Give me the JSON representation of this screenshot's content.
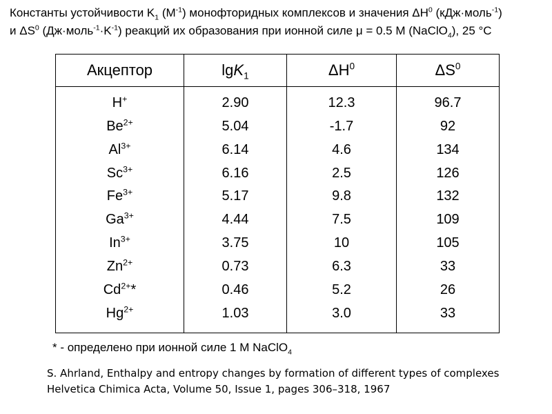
{
  "caption": {
    "p1": "Константы устойчивости K",
    "k_sub": "1",
    "p2": " (M",
    "p2_sup": "-1",
    "p3": ") монофторидных комплексов и значения ΔH",
    "p3_sup": "0",
    "p4": " (кДж·моль",
    "p4_sup": "-1",
    "p5": ")",
    "p6": "и ΔS",
    "p6_sup": "0",
    "p7": " (Дж·моль",
    "p7_sup": "-1",
    "p8": "·K",
    "p8_sup": "-1",
    "p9": ") реакций их образования при ионной силе μ = 0.5 M (NaClO",
    "p9_sub": "4",
    "p10": "), 25 °C"
  },
  "table": {
    "headers": {
      "acceptor": "Акцептор",
      "lgk_base": "lg",
      "lgk_k": "K",
      "lgk_sub": "1",
      "dh_base": "ΔH",
      "dh_sup": "0",
      "ds_base": "ΔS",
      "ds_sup": "0"
    },
    "rows": [
      {
        "ion": "H",
        "charge": "+",
        "mark": "",
        "lgk": "2.90",
        "dh": "12.3",
        "ds": "96.7"
      },
      {
        "ion": "Be",
        "charge": "2+",
        "mark": "",
        "lgk": "5.04",
        "dh": "-1.7",
        "ds": "92"
      },
      {
        "ion": "Al",
        "charge": "3+",
        "mark": "",
        "lgk": "6.14",
        "dh": "4.6",
        "ds": "134"
      },
      {
        "ion": "Sc",
        "charge": "3+",
        "mark": "",
        "lgk": "6.16",
        "dh": "2.5",
        "ds": "126"
      },
      {
        "ion": "Fe",
        "charge": "3+",
        "mark": "",
        "lgk": "5.17",
        "dh": "9.8",
        "ds": "132"
      },
      {
        "ion": "Ga",
        "charge": "3+",
        "mark": "",
        "lgk": "4.44",
        "dh": "7.5",
        "ds": "109"
      },
      {
        "ion": "In",
        "charge": "3+",
        "mark": "",
        "lgk": "3.75",
        "dh": "10",
        "ds": "105"
      },
      {
        "ion": "Zn",
        "charge": "2+",
        "mark": "",
        "lgk": "0.73",
        "dh": "6.3",
        "ds": "33"
      },
      {
        "ion": "Cd",
        "charge": "2+",
        "mark": "*",
        "lgk": "0.46",
        "dh": "5.2",
        "ds": "26"
      },
      {
        "ion": "Hg",
        "charge": "2+",
        "mark": "",
        "lgk": "1.03",
        "dh": "3.0",
        "ds": "33"
      }
    ]
  },
  "footnote": {
    "text": "* - определено при ионной силе 1 M NaClO",
    "sub": "4"
  },
  "reference": {
    "line1": "S. Ahrland, Enthalpy and entropy changes by formation of different types of complexes",
    "line2": "Helvetica Chimica Acta, Volume 50, Issue 1, pages 306–318, 1967"
  }
}
